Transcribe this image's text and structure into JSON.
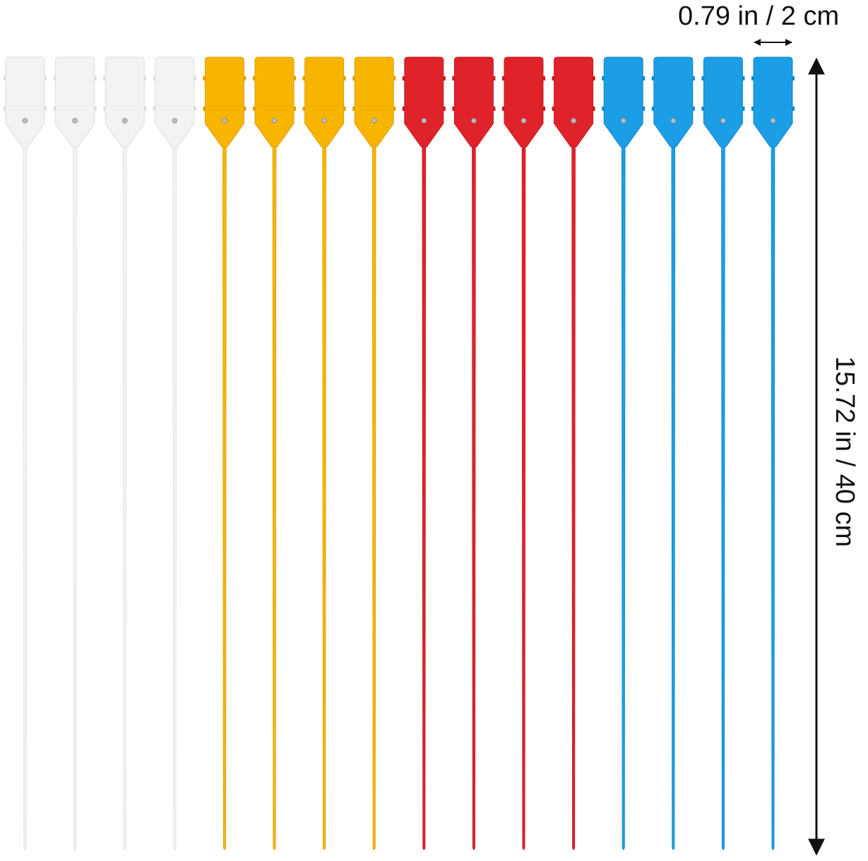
{
  "product": {
    "tag_colors": [
      {
        "color": "white",
        "fill": "#f3f3f3",
        "edge": "#dcdcdc",
        "count": 4
      },
      {
        "color": "yellow",
        "fill": "#f7b500",
        "edge": "#de9e00",
        "count": 4
      },
      {
        "color": "red",
        "fill": "#e0232b",
        "edge": "#c21a21",
        "count": 4
      },
      {
        "color": "blue",
        "fill": "#1b9ee5",
        "edge": "#1586c6",
        "count": 4
      }
    ],
    "hole_color": "#bdbdbd",
    "total_tags": 16
  },
  "dimensions": {
    "width_label": "0.79 in / 2 cm",
    "height_label": "15.72 in / 40 cm",
    "arrow_color": "#111111"
  }
}
